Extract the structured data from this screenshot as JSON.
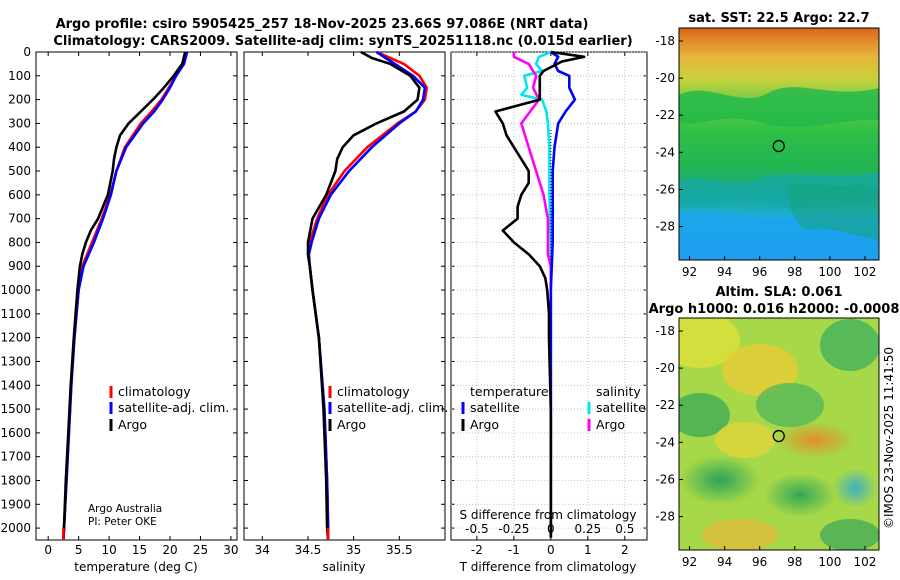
{
  "figure": {
    "title_line1": "Argo profile: csiro 5905425_257 18-Nov-2025 23.66S 97.086E (NRT data)",
    "title_line2": "Climatology: CARS2009. Satellite-adj clim: synTS_20251118.nc (0.015d earlier)",
    "credit": "Argo Australia",
    "pi": "PI: Peter OKE",
    "timestamp": "©IMOS 23-Nov-2025 11:41:50"
  },
  "colors": {
    "climatology": "#ff0000",
    "satellite": "#0000ff",
    "argo": "#000000",
    "sal_satellite": "#00e5ee",
    "sal_argo": "#ff00ff",
    "marker": "#000000"
  },
  "chart_data": [
    {
      "id": "temperature",
      "type": "line",
      "xlabel": "temperature (deg C)",
      "ylabel": "",
      "xlim": [
        -2,
        31
      ],
      "ylim": [
        2050,
        0
      ],
      "xticks": [
        0,
        5,
        10,
        15,
        20,
        25,
        30
      ],
      "yticks": [
        0,
        100,
        200,
        300,
        400,
        500,
        600,
        700,
        800,
        900,
        1000,
        1100,
        1200,
        1300,
        1400,
        1500,
        1600,
        1700,
        1800,
        1900,
        2000
      ],
      "legend": [
        "climatology",
        "satellite-adj. clim.",
        "Argo"
      ],
      "series": [
        {
          "name": "climatology",
          "depth": [
            0,
            50,
            100,
            150,
            200,
            250,
            300,
            400,
            500,
            600,
            700,
            800,
            900,
            1000,
            1200,
            1400,
            1600,
            1800,
            2000,
            2050
          ],
          "values": [
            22.6,
            22.2,
            21.0,
            19.8,
            18.6,
            17.0,
            15.2,
            12.6,
            11.2,
            10.2,
            8.8,
            7.2,
            5.6,
            5.0,
            4.3,
            3.8,
            3.4,
            3.0,
            2.6,
            2.5
          ]
        },
        {
          "name": "satellite-adj. clim.",
          "depth": [
            0,
            50,
            100,
            150,
            200,
            250,
            300,
            400,
            500,
            600,
            700,
            800,
            900,
            1000,
            1200,
            1400,
            1600,
            1800,
            2000,
            2050
          ],
          "values": [
            22.8,
            22.3,
            21.0,
            20.0,
            18.8,
            17.4,
            15.6,
            12.8,
            11.2,
            10.3,
            9.0,
            7.5,
            5.8,
            5.0,
            4.3,
            3.8,
            3.4,
            3.0,
            2.6,
            2.5
          ]
        },
        {
          "name": "Argo",
          "depth": [
            0,
            50,
            100,
            150,
            200,
            250,
            300,
            350,
            400,
            450,
            500,
            600,
            700,
            750,
            800,
            850,
            900,
            1000,
            1200,
            1400,
            1600,
            1800,
            2000,
            2050
          ],
          "values": [
            22.5,
            22.0,
            20.6,
            19.0,
            17.2,
            15.2,
            13.2,
            11.8,
            11.2,
            10.8,
            10.6,
            9.8,
            8.2,
            7.0,
            6.2,
            5.6,
            5.2,
            4.8,
            4.2,
            3.7,
            3.3,
            2.9,
            2.6,
            2.5
          ]
        }
      ]
    },
    {
      "id": "salinity",
      "type": "line",
      "xlabel": "salinity",
      "ylabel": "",
      "xlim": [
        33.8,
        36.0
      ],
      "ylim": [
        2050,
        0
      ],
      "xticks": [
        34,
        34.5,
        35,
        35.5
      ],
      "xtick_labels": [
        "34",
        "34.5",
        "35",
        "35.5"
      ],
      "legend": [
        "climatology",
        "satellite-adj. clim.",
        "Argo"
      ],
      "series": [
        {
          "name": "climatology",
          "depth": [
            0,
            25,
            50,
            100,
            150,
            200,
            250,
            300,
            400,
            500,
            600,
            700,
            800,
            850,
            900,
            1000,
            1200,
            1500,
            1800,
            2000,
            2050
          ],
          "values": [
            35.25,
            35.4,
            35.55,
            35.72,
            35.8,
            35.78,
            35.68,
            35.48,
            35.15,
            34.9,
            34.72,
            34.6,
            34.52,
            34.5,
            34.52,
            34.55,
            34.62,
            34.68,
            34.71,
            34.72,
            34.72
          ]
        },
        {
          "name": "satellite-adj. clim.",
          "depth": [
            0,
            25,
            50,
            100,
            150,
            200,
            250,
            300,
            400,
            500,
            600,
            700,
            800,
            850,
            900,
            1000,
            1200,
            1500,
            1800,
            2000,
            2050
          ],
          "values": [
            35.25,
            35.35,
            35.45,
            35.65,
            35.78,
            35.76,
            35.68,
            35.5,
            35.2,
            34.95,
            34.75,
            34.62,
            34.54,
            34.51,
            34.52,
            34.55,
            34.62,
            34.68,
            34.71,
            34.72,
            34.72
          ]
        },
        {
          "name": "Argo",
          "depth": [
            0,
            25,
            50,
            100,
            150,
            200,
            250,
            300,
            350,
            400,
            450,
            500,
            600,
            700,
            800,
            850,
            900,
            1000,
            1200,
            1500,
            1800,
            2000,
            2050
          ],
          "values": [
            35.08,
            35.2,
            35.4,
            35.62,
            35.72,
            35.7,
            35.55,
            35.25,
            35.0,
            34.88,
            34.82,
            34.8,
            34.7,
            34.55,
            34.5,
            34.5,
            34.52,
            34.55,
            34.62,
            34.67,
            34.7,
            34.71,
            34.72
          ]
        }
      ]
    },
    {
      "id": "differences",
      "type": "line",
      "xlabel": "T difference from climatology",
      "ylabel": "",
      "title_bottom": "S difference from climatology",
      "xlim": [
        -2.7,
        2.6
      ],
      "ylim": [
        2050,
        0
      ],
      "xticks": [
        -2,
        -1,
        0,
        1,
        2
      ],
      "s_ticks": [
        -0.5,
        -0.25,
        0,
        0.25,
        0.5
      ],
      "s_tick_labels": [
        "-0.5",
        "-0.25",
        "0",
        "0.25",
        "0.5"
      ],
      "legend_t_header": "temperature",
      "legend_s_header": "salinity",
      "legend_t": [
        "satellite",
        "Argo"
      ],
      "legend_s": [
        "satellite",
        "Argo"
      ],
      "series": [
        {
          "name": "T satellite",
          "depth": [
            0,
            20,
            50,
            80,
            100,
            150,
            200,
            250,
            300,
            400,
            500,
            600,
            800,
            1000,
            1500,
            2000,
            2040
          ],
          "values": [
            0.0,
            0.2,
            0.1,
            0.2,
            0.5,
            0.5,
            0.65,
            0.4,
            0.2,
            0.1,
            0.05,
            0.05,
            0.05,
            0.0,
            0.0,
            0.0,
            0.0
          ]
        },
        {
          "name": "T Argo",
          "depth": [
            0,
            20,
            40,
            80,
            100,
            150,
            200,
            250,
            300,
            350,
            400,
            450,
            500,
            550,
            600,
            650,
            700,
            750,
            800,
            850,
            900,
            950,
            1000,
            1100,
            1200,
            1500,
            2000,
            2040
          ],
          "values": [
            0.0,
            0.9,
            0.3,
            -0.2,
            -0.3,
            -0.3,
            -0.3,
            -1.5,
            -1.3,
            -1.2,
            -1.0,
            -0.8,
            -0.6,
            -0.6,
            -0.8,
            -0.9,
            -0.9,
            -1.3,
            -1.0,
            -0.6,
            -0.3,
            -0.15,
            -0.1,
            -0.05,
            -0.05,
            0.0,
            0.0,
            0.0
          ]
        },
        {
          "name": "S satellite",
          "depth": [
            0,
            20,
            50,
            80,
            100,
            150,
            180,
            200,
            250,
            300,
            400,
            500,
            600,
            800,
            1000,
            1500,
            2000,
            2040
          ],
          "values": [
            0.0,
            -0.08,
            -0.1,
            -0.06,
            -0.18,
            -0.16,
            -0.2,
            -0.06,
            -0.03,
            -0.02,
            -0.01,
            -0.01,
            -0.01,
            0.0,
            0.0,
            0.0,
            0.0,
            0.0
          ]
        },
        {
          "name": "S Argo",
          "depth": [
            0,
            20,
            50,
            100,
            150,
            200,
            300,
            400,
            500,
            600,
            700,
            800,
            850,
            900,
            1000,
            1500,
            2000,
            2040
          ],
          "values": [
            -0.25,
            -0.25,
            -0.15,
            -0.1,
            -0.12,
            -0.08,
            -0.2,
            -0.15,
            -0.1,
            -0.05,
            -0.02,
            -0.02,
            -0.02,
            0.0,
            0.0,
            0.0,
            0.0,
            0.0
          ]
        }
      ]
    },
    {
      "id": "sst_map",
      "type": "heatmap",
      "title": "sat. SST: 22.5 Argo: 22.7",
      "xticks": [
        92,
        94,
        96,
        98,
        100,
        102
      ],
      "yticks": [
        -18,
        -20,
        -22,
        -24,
        -26,
        -28
      ],
      "xlim": [
        91.4,
        102.8
      ],
      "ylim": [
        -29.8,
        -17.3
      ],
      "float_position": [
        97.086,
        -23.66
      ]
    },
    {
      "id": "sla_map",
      "type": "heatmap",
      "title": "Altim. SLA: 0.061",
      "title2": "Argo h1000: 0.016 h2000: -0.0008",
      "xticks": [
        92,
        94,
        96,
        98,
        100,
        102
      ],
      "yticks": [
        -18,
        -20,
        -22,
        -24,
        -26,
        -28
      ],
      "xlim": [
        91.4,
        102.8
      ],
      "ylim": [
        -29.8,
        -17.3
      ],
      "float_position": [
        97.086,
        -23.66
      ]
    }
  ]
}
